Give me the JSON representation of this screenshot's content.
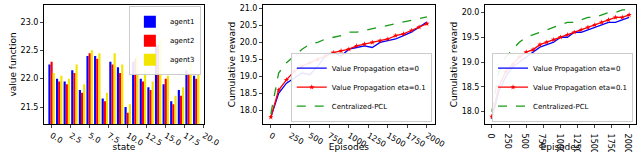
{
  "chart_data": [
    {
      "type": "bar",
      "x_label": "state",
      "y_label": "value function",
      "x": [
        0,
        1,
        2,
        3,
        4,
        5,
        6,
        7,
        8,
        9,
        10,
        11,
        12,
        13,
        14,
        15,
        16,
        17,
        18,
        19
      ],
      "series": [
        {
          "name": "agent1",
          "color": "#0000ff",
          "values": [
            22.25,
            22.0,
            21.95,
            22.15,
            21.8,
            22.4,
            22.4,
            21.65,
            22.3,
            22.2,
            21.5,
            22.3,
            22.0,
            21.85,
            22.6,
            21.9,
            21.6,
            21.8,
            22.15,
            22.05
          ]
        },
        {
          "name": "agent2",
          "color": "#ff0000",
          "values": [
            22.3,
            21.95,
            21.9,
            22.1,
            21.75,
            22.45,
            22.35,
            21.6,
            22.25,
            22.1,
            21.4,
            22.35,
            21.95,
            21.8,
            22.6,
            22.0,
            21.55,
            21.7,
            22.1,
            22.0
          ]
        },
        {
          "name": "agent3",
          "color": "#f2e600",
          "values": [
            22.1,
            22.05,
            22.0,
            22.25,
            21.9,
            22.5,
            22.45,
            21.75,
            22.45,
            22.25,
            21.55,
            22.4,
            22.15,
            21.95,
            22.7,
            22.05,
            21.7,
            21.85,
            22.3,
            22.1
          ]
        }
      ],
      "xlim": [
        -1,
        20
      ],
      "xticks": [
        {
          "value": 0,
          "label": "0.0"
        },
        {
          "value": 2.5,
          "label": "2.5"
        },
        {
          "value": 5,
          "label": "5.0"
        },
        {
          "value": 7.5,
          "label": "7.5"
        },
        {
          "value": 10,
          "label": "10.0"
        },
        {
          "value": 12.5,
          "label": "12.5"
        },
        {
          "value": 15,
          "label": "15.0"
        },
        {
          "value": 17.5,
          "label": "17.5"
        },
        {
          "value": 20,
          "label": "20.0"
        }
      ],
      "ylim": [
        21.2,
        23.3
      ],
      "yticks": [
        21.5,
        {
          "value": 22,
          "label": "22.0"
        },
        22.5,
        {
          "value": 23,
          "label": "23.0"
        }
      ],
      "grid": false,
      "legend": "upper-right"
    },
    {
      "type": "line",
      "x_label": "Episodes",
      "y_label": "Cumulative reward",
      "x": [
        0,
        100,
        200,
        300,
        400,
        500,
        600,
        700,
        800,
        900,
        1000,
        1100,
        1200,
        1300,
        1400,
        1500,
        1600,
        1700,
        1800,
        1900,
        2000
      ],
      "series": [
        {
          "name": "Value Propagation eta=0",
          "color": "#0000ff",
          "values": [
            17.8,
            18.5,
            18.8,
            18.95,
            19.1,
            19.05,
            19.3,
            19.6,
            19.7,
            19.6,
            19.8,
            19.85,
            19.9,
            19.85,
            20.0,
            20.05,
            20.1,
            20.2,
            20.3,
            20.45,
            20.6
          ]
        },
        {
          "name": "Value Propagation eta=0.1",
          "color": "#ff0000",
          "marker": "star",
          "values": [
            17.8,
            18.6,
            18.9,
            19.15,
            19.3,
            19.4,
            19.5,
            19.6,
            19.7,
            19.75,
            19.8,
            19.9,
            19.95,
            20.0,
            20.05,
            20.1,
            20.2,
            20.25,
            20.35,
            20.45,
            20.55
          ]
        },
        {
          "name": "Centralized-PCL",
          "color": "#1a9a1a",
          "line_style": "dashed",
          "values": [
            17.9,
            19.1,
            19.4,
            19.6,
            19.8,
            19.95,
            20.0,
            20.1,
            20.15,
            20.2,
            20.3,
            20.3,
            20.35,
            20.4,
            20.45,
            20.5,
            20.55,
            20.6,
            20.65,
            20.7,
            20.75
          ]
        }
      ],
      "xlim": [
        -100,
        2100
      ],
      "xticks": [
        0,
        250,
        500,
        750,
        1000,
        1250,
        1500,
        1750,
        2000
      ],
      "ylim": [
        17.6,
        21.1
      ],
      "yticks": [
        {
          "value": 18,
          "label": "18.0"
        },
        18.5,
        {
          "value": 19,
          "label": "19.0"
        },
        19.5,
        {
          "value": 20,
          "label": "20.0"
        },
        20.5,
        {
          "value": 21,
          "label": "21.0"
        }
      ],
      "grid": false,
      "legend": "lower-right"
    },
    {
      "type": "line",
      "x_label": "Episodes",
      "y_label": "Cumulative reward",
      "x": [
        0,
        100,
        200,
        300,
        400,
        500,
        600,
        700,
        800,
        900,
        1000,
        1100,
        1200,
        1300,
        1400,
        1500,
        1600,
        1700,
        1800,
        1900,
        2000
      ],
      "series": [
        {
          "name": "Value Propagation eta=0",
          "color": "#0000ff",
          "values": [
            17.85,
            18.4,
            18.7,
            18.9,
            19.0,
            19.1,
            19.2,
            19.3,
            19.35,
            19.4,
            19.5,
            19.5,
            19.6,
            19.6,
            19.65,
            19.7,
            19.75,
            19.8,
            19.8,
            19.85,
            19.9
          ]
        },
        {
          "name": "Value Propagation eta=0.1",
          "color": "#ff0000",
          "marker": "star",
          "values": [
            17.9,
            18.5,
            18.8,
            18.95,
            19.1,
            19.2,
            19.25,
            19.35,
            19.4,
            19.45,
            19.5,
            19.55,
            19.6,
            19.65,
            19.7,
            19.75,
            19.8,
            19.85,
            19.9,
            19.9,
            19.95
          ]
        },
        {
          "name": "Centralized-PCL",
          "color": "#1a9a1a",
          "line_style": "dashed",
          "values": [
            18.0,
            18.8,
            19.1,
            19.25,
            19.4,
            19.5,
            19.55,
            19.6,
            19.65,
            19.7,
            19.75,
            19.8,
            19.8,
            19.85,
            19.9,
            19.9,
            19.95,
            20.0,
            20.0,
            20.05,
            20.05
          ]
        }
      ],
      "xlim": [
        -100,
        2100
      ],
      "xticks": [
        0,
        250,
        500,
        750,
        1000,
        1250,
        1500,
        1750,
        2000
      ],
      "ylim": [
        17.75,
        20.15
      ],
      "yticks": [
        {
          "value": 18,
          "label": "18.0"
        },
        18.5,
        {
          "value": 19,
          "label": "19.0"
        },
        19.5,
        {
          "value": 20,
          "label": "20.0"
        }
      ],
      "grid": false,
      "legend": "lower-right"
    }
  ]
}
